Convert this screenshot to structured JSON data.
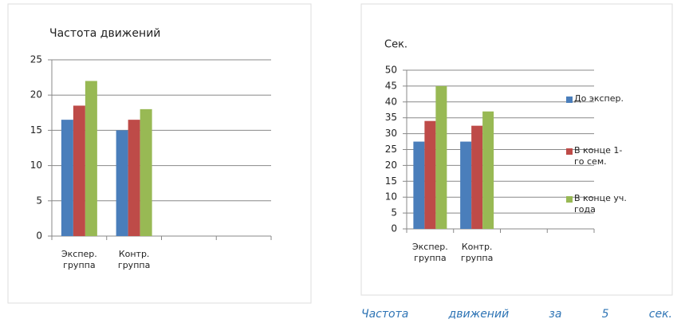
{
  "chart_data": [
    {
      "type": "bar",
      "title": "Частота движений",
      "categories": [
        "Экспер. группа",
        "Контр. группа",
        null,
        null
      ],
      "series": [
        {
          "color": "#4a7ebb",
          "values": [
            16.5,
            15,
            null,
            null
          ]
        },
        {
          "color": "#be4b48",
          "values": [
            18.5,
            16.5,
            null,
            null
          ]
        },
        {
          "color": "#98b954",
          "values": [
            22,
            18,
            null,
            null
          ]
        }
      ],
      "ylim": [
        0,
        25
      ],
      "yticks": [
        0,
        5,
        10,
        15,
        20,
        25
      ],
      "grid": true,
      "legend": "none"
    },
    {
      "type": "bar",
      "title": "Сек.",
      "categories": [
        "Экспер. группа",
        "Контр. группа",
        null,
        null
      ],
      "series": [
        {
          "name": "До экспер.",
          "color": "#4a7ebb",
          "values": [
            27.5,
            27.5,
            null,
            null
          ]
        },
        {
          "name": "В конце 1-го сем.",
          "color": "#be4b48",
          "values": [
            34,
            32.5,
            null,
            null
          ]
        },
        {
          "name": "В конце уч. года",
          "color": "#98b954",
          "values": [
            45,
            37,
            null,
            null
          ]
        }
      ],
      "ylim": [
        0,
        50
      ],
      "yticks": [
        0,
        5,
        10,
        15,
        20,
        25,
        30,
        35,
        40,
        45,
        50
      ],
      "grid": true,
      "legend": "right"
    }
  ],
  "caption": "Частота движений за 5 сек."
}
